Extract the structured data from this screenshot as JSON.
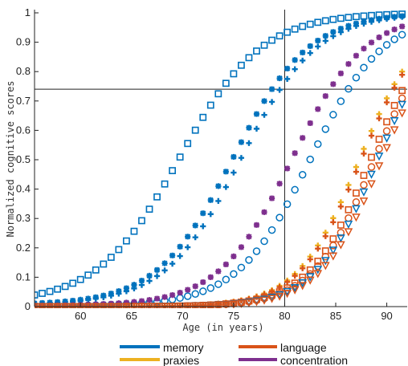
{
  "chart_data": {
    "type": "scatter",
    "xlabel": "Age (in years)",
    "ylabel": "Normalized cognitive scores",
    "xlim": [
      55.5,
      92
    ],
    "ylim": [
      0,
      1
    ],
    "x_ticks": [
      60,
      65,
      70,
      75,
      80,
      85,
      90
    ],
    "y_ticks": [
      0,
      0.1,
      0.2,
      0.3,
      0.4,
      0.5,
      0.6,
      0.7,
      0.8,
      0.9,
      1
    ],
    "x_step": 0.75,
    "reference_lines": {
      "x": 80,
      "y": 0.74
    },
    "legend": {
      "placement": "bottom",
      "entries": [
        {
          "label": "memory",
          "color": "#0072BD"
        },
        {
          "label": "language",
          "color": "#D95319"
        },
        {
          "label": "praxies",
          "color": "#EDB120"
        },
        {
          "label": "concentration",
          "color": "#7E2F8E"
        }
      ]
    },
    "series": [
      {
        "group": "memory",
        "marker": "square",
        "color": "#0072BD",
        "midpoint": 69.7,
        "rate": 0.25,
        "floor": 0.012
      },
      {
        "group": "memory",
        "marker": "asterisk",
        "color": "#0072BD",
        "midpoint": 74.9,
        "rate": 0.27,
        "floor": 0.006
      },
      {
        "group": "memory",
        "marker": "plus",
        "color": "#0072BD",
        "midpoint": 75.7,
        "rate": 0.27,
        "floor": 0.006
      },
      {
        "group": "memory",
        "marker": "circle",
        "color": "#0072BD",
        "midpoint": 82.5,
        "rate": 0.28,
        "floor": 0.002
      },
      {
        "group": "concentration",
        "marker": "asterisk",
        "color": "#7E2F8E",
        "midpoint": 80.7,
        "rate": 0.28,
        "floor": 0.003
      },
      {
        "group": "praxies",
        "marker": "plus",
        "color": "#EDB120",
        "midpoint": 87.3,
        "rate": 0.33,
        "floor": 0.0
      },
      {
        "group": "language",
        "marker": "plus",
        "color": "#D95319",
        "midpoint": 87.5,
        "rate": 0.33,
        "floor": 0.0
      },
      {
        "group": "language",
        "marker": "square",
        "color": "#D95319",
        "midpoint": 88.4,
        "rate": 0.33,
        "floor": 0.0
      },
      {
        "group": "language",
        "marker": "circle",
        "color": "#D95319",
        "midpoint": 88.8,
        "rate": 0.33,
        "floor": 0.0
      },
      {
        "group": "memory",
        "marker": "triangle-down",
        "color": "#0072BD",
        "midpoint": 89.1,
        "rate": 0.33,
        "floor": 0.0
      },
      {
        "group": "language",
        "marker": "triangle-down",
        "color": "#D95319",
        "midpoint": 89.5,
        "rate": 0.33,
        "floor": 0.0
      }
    ]
  }
}
